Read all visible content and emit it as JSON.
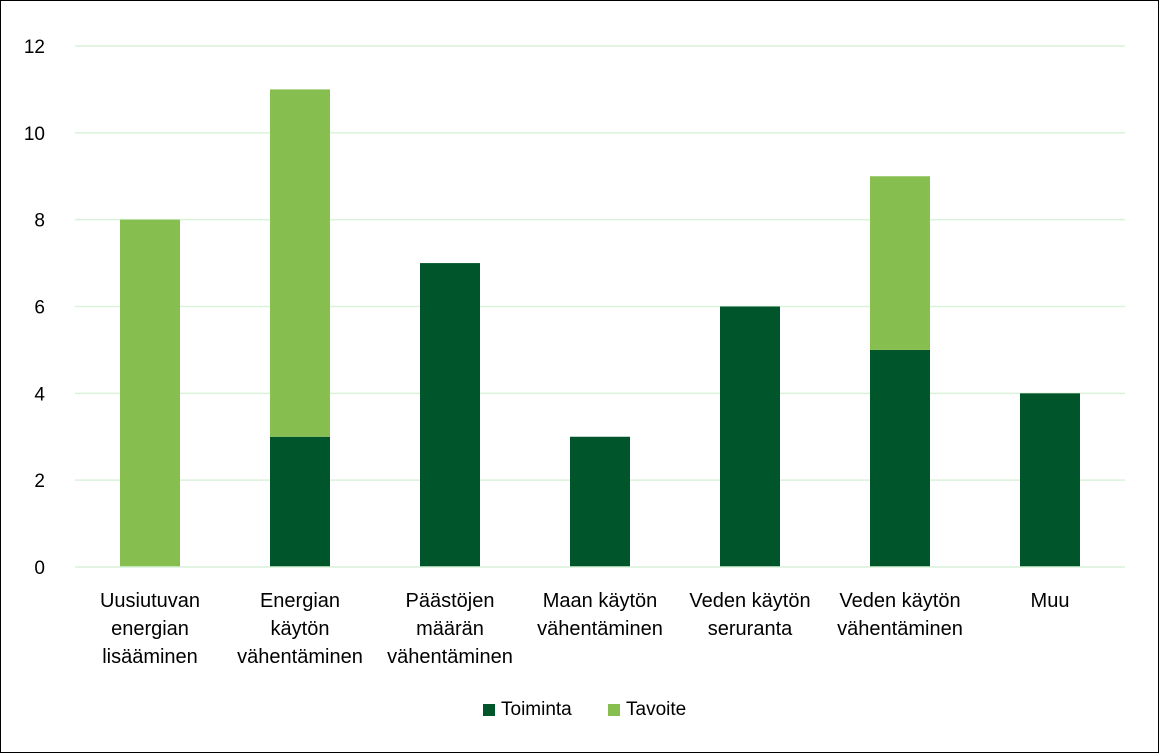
{
  "chart_data": {
    "type": "bar",
    "stacked": true,
    "categories": [
      [
        "Uusiutuvan",
        "energian",
        "lisääminen"
      ],
      [
        "Energian",
        "käytön",
        "vähentäminen"
      ],
      [
        "Päästöjen",
        "määrän",
        "vähentäminen"
      ],
      [
        "Maan käytön",
        "vähentäminen"
      ],
      [
        "Veden käytön",
        "seruranta"
      ],
      [
        "Veden käytön",
        "vähentäminen"
      ],
      [
        "Muu"
      ]
    ],
    "series": [
      {
        "name": "Toiminta",
        "color": "#00552b",
        "values": [
          0,
          3,
          7,
          3,
          6,
          5,
          4
        ]
      },
      {
        "name": "Tavoite",
        "color": "#86bf50",
        "values": [
          8,
          8,
          0,
          0,
          0,
          4,
          0
        ]
      }
    ],
    "ylim": [
      0,
      12
    ],
    "yticks": [
      "0",
      "2",
      "4",
      "6",
      "8",
      "10",
      "12"
    ],
    "grid": true,
    "gridColor": "#d9f2d9",
    "legend": "bottom"
  }
}
